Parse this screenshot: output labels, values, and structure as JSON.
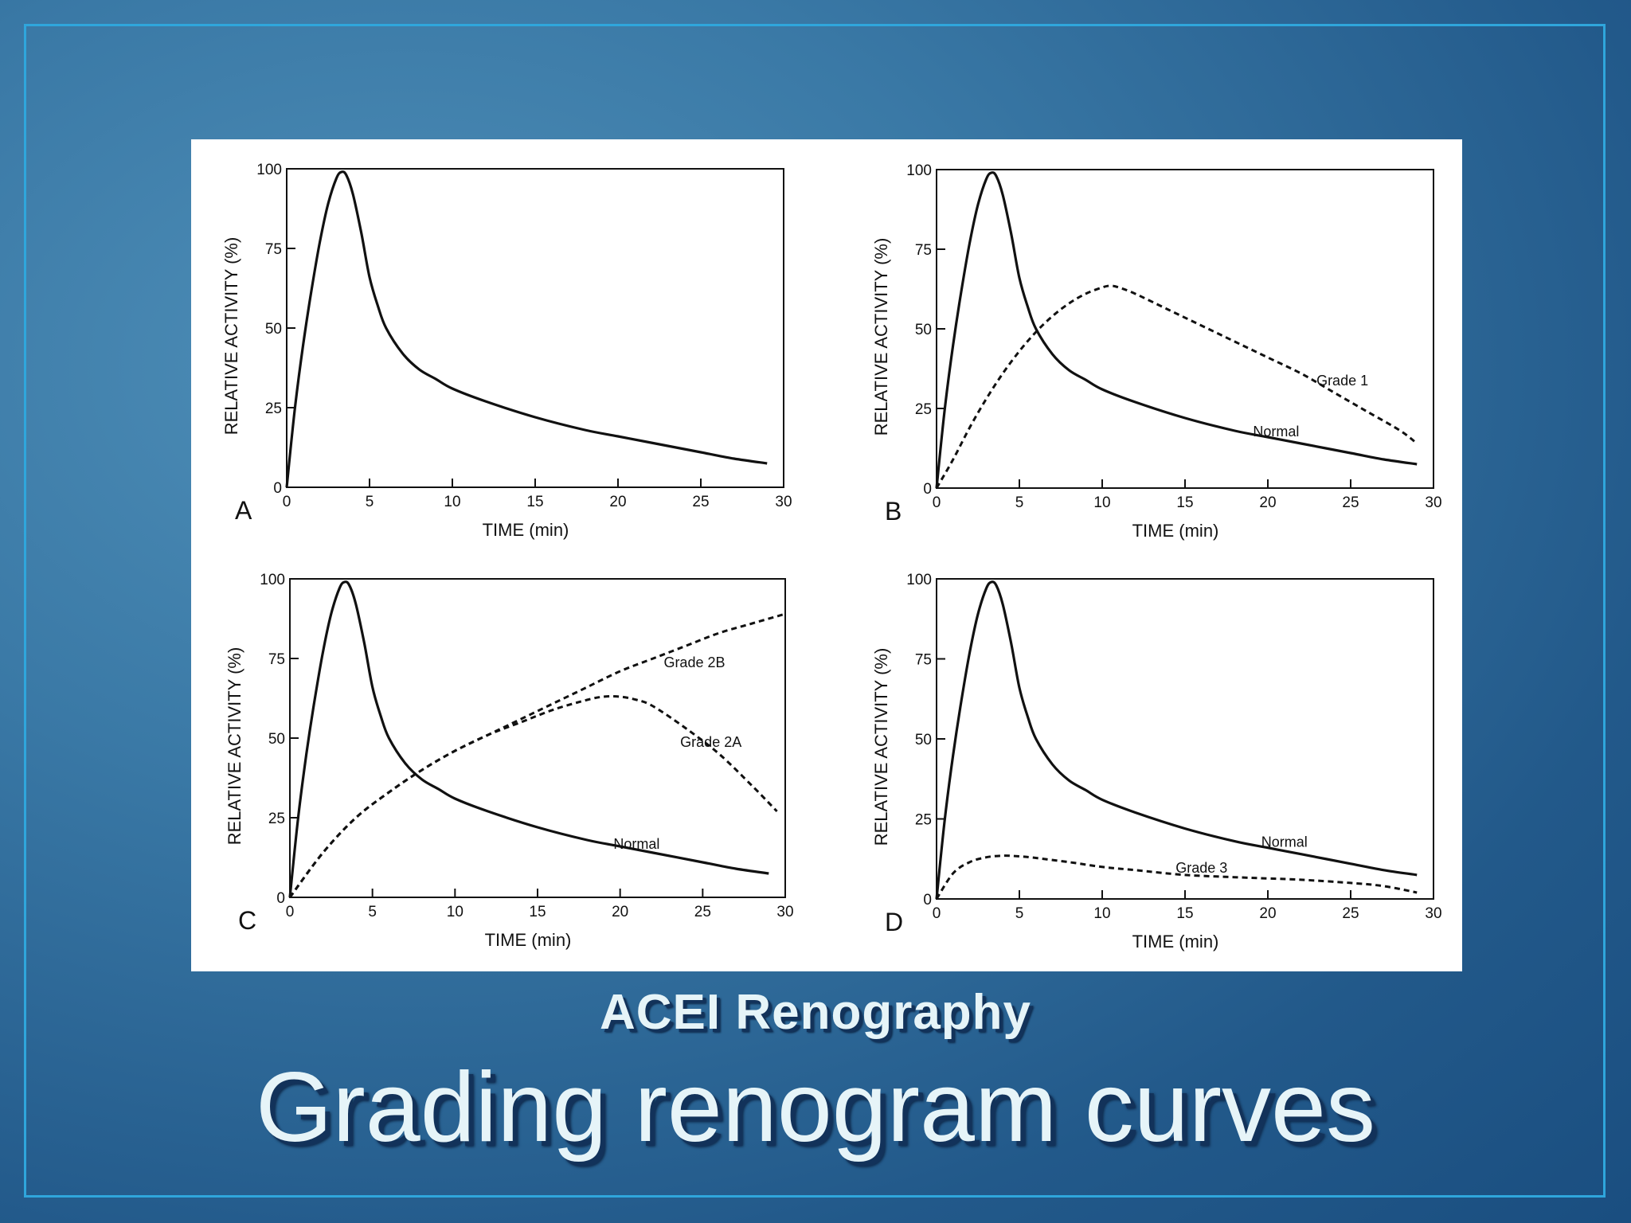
{
  "slide": {
    "subtitle": "ACEI Renography",
    "title": "Grading renogram curves",
    "frame_color": "#2fa6dc",
    "text_color": "#e6f4f8"
  },
  "chart_data": [
    {
      "type": "line",
      "panel": "A",
      "xlabel": "TIME (min)",
      "ylabel": "RELATIVE ACTIVITY (%)",
      "xlim": [
        0,
        30
      ],
      "ylim": [
        0,
        100
      ],
      "xticks": [
        0,
        5,
        10,
        15,
        20,
        25,
        30
      ],
      "yticks": [
        0,
        25,
        50,
        75,
        100
      ],
      "series": [
        {
          "style": "solid",
          "x": [
            0,
            0.5,
            1,
            1.5,
            2,
            2.5,
            3,
            3.3,
            3.6,
            4,
            4.5,
            5,
            5.5,
            6,
            7,
            8,
            9,
            10,
            12,
            15,
            18,
            20,
            22,
            25,
            27,
            29
          ],
          "y": [
            0,
            25,
            45,
            62,
            77,
            89,
            97,
            99,
            98,
            92,
            80,
            66,
            57,
            50,
            42,
            37,
            34,
            31,
            27,
            22,
            18,
            16,
            14,
            11,
            9,
            7.5
          ]
        }
      ],
      "labels": []
    },
    {
      "type": "line",
      "panel": "B",
      "xlabel": "TIME (min)",
      "ylabel": "RELATIVE ACTIVITY (%)",
      "xlim": [
        0,
        30
      ],
      "ylim": [
        0,
        100
      ],
      "xticks": [
        0,
        5,
        10,
        15,
        20,
        25,
        30
      ],
      "yticks": [
        0,
        25,
        50,
        75,
        100
      ],
      "series": [
        {
          "name": "Normal",
          "style": "solid",
          "x": [
            0,
            0.5,
            1,
            1.5,
            2,
            2.5,
            3,
            3.3,
            3.6,
            4,
            4.5,
            5,
            5.5,
            6,
            7,
            8,
            9,
            10,
            12,
            15,
            18,
            20,
            22,
            25,
            27,
            29
          ],
          "y": [
            0,
            25,
            45,
            62,
            77,
            89,
            97,
            99,
            98,
            92,
            80,
            66,
            57,
            50,
            42,
            37,
            34,
            31,
            27,
            22,
            18,
            16,
            14,
            11,
            9,
            7.5
          ]
        },
        {
          "name": "Grade 1",
          "style": "dashed",
          "x": [
            0,
            1,
            2,
            3,
            4,
            5,
            6,
            7,
            8,
            9,
            10,
            10.5,
            11,
            12,
            14,
            16,
            18,
            20,
            22,
            24,
            26,
            28,
            29
          ],
          "y": [
            0,
            9,
            19,
            28,
            36,
            43,
            49,
            54,
            58,
            61,
            63,
            63.5,
            63,
            61,
            56,
            51,
            46,
            41,
            36,
            30,
            24,
            18,
            14
          ]
        }
      ],
      "labels": [
        {
          "text": "Grade 1",
          "x": 24.5,
          "y": 34
        },
        {
          "text": "Normal",
          "x": 20.5,
          "y": 18
        }
      ]
    },
    {
      "type": "line",
      "panel": "C",
      "xlabel": "TIME (min)",
      "ylabel": "RELATIVE ACTIVITY (%)",
      "xlim": [
        0,
        30
      ],
      "ylim": [
        0,
        100
      ],
      "xticks": [
        0,
        5,
        10,
        15,
        20,
        25,
        30
      ],
      "yticks": [
        0,
        25,
        50,
        75,
        100
      ],
      "series": [
        {
          "name": "Normal",
          "style": "solid",
          "x": [
            0,
            0.5,
            1,
            1.5,
            2,
            2.5,
            3,
            3.3,
            3.6,
            4,
            4.5,
            5,
            5.5,
            6,
            7,
            8,
            9,
            10,
            12,
            15,
            18,
            20,
            22,
            25,
            27,
            29
          ],
          "y": [
            0,
            25,
            45,
            62,
            77,
            89,
            97,
            99,
            98,
            92,
            80,
            66,
            57,
            50,
            42,
            37,
            34,
            31,
            27,
            22,
            18,
            16,
            14,
            11,
            9,
            7.5
          ]
        },
        {
          "name": "Grade 2B",
          "style": "dashed",
          "x": [
            0,
            2,
            4,
            6,
            8,
            10,
            12,
            14,
            16,
            18,
            20,
            22,
            24,
            26,
            28,
            30
          ],
          "y": [
            0,
            14,
            25,
            33,
            40,
            46,
            51,
            56,
            61,
            66,
            71,
            75,
            79,
            83,
            86,
            89
          ]
        },
        {
          "name": "Grade 2A",
          "style": "dashed",
          "x": [
            0,
            2,
            4,
            6,
            8,
            10,
            12,
            14,
            16,
            18,
            19,
            20,
            21,
            22,
            24,
            26,
            28,
            29.5
          ],
          "y": [
            0,
            14,
            25,
            33,
            40,
            46,
            51,
            55,
            59,
            62,
            63,
            63,
            62,
            60,
            53,
            45,
            35,
            27
          ]
        }
      ],
      "labels": [
        {
          "text": "Grade 2B",
          "x": 24.5,
          "y": 74
        },
        {
          "text": "Grade 2A",
          "x": 25.5,
          "y": 49
        },
        {
          "text": "Normal",
          "x": 21,
          "y": 17
        }
      ]
    },
    {
      "type": "line",
      "panel": "D",
      "xlabel": "TIME (min)",
      "ylabel": "RELATIVE ACTIVITY (%)",
      "xlim": [
        0,
        30
      ],
      "ylim": [
        0,
        100
      ],
      "xticks": [
        0,
        5,
        10,
        15,
        20,
        25,
        30
      ],
      "yticks": [
        0,
        25,
        50,
        75,
        100
      ],
      "series": [
        {
          "name": "Normal",
          "style": "solid",
          "x": [
            0,
            0.5,
            1,
            1.5,
            2,
            2.5,
            3,
            3.3,
            3.6,
            4,
            4.5,
            5,
            5.5,
            6,
            7,
            8,
            9,
            10,
            12,
            15,
            18,
            20,
            22,
            25,
            27,
            29
          ],
          "y": [
            0,
            25,
            45,
            62,
            77,
            89,
            97,
            99,
            98,
            92,
            80,
            66,
            57,
            50,
            42,
            37,
            34,
            31,
            27,
            22,
            18,
            16,
            14,
            11,
            9,
            7.5
          ]
        },
        {
          "name": "Grade 3",
          "style": "dashed",
          "x": [
            0,
            1,
            2,
            3,
            4,
            5,
            6,
            8,
            10,
            12,
            15,
            18,
            20,
            22,
            25,
            27,
            29
          ],
          "y": [
            0,
            8,
            11.5,
            13,
            13.5,
            13.3,
            12.8,
            11.5,
            10,
            9,
            7.5,
            6.8,
            6.4,
            6,
            5,
            4,
            2
          ]
        }
      ],
      "labels": [
        {
          "text": "Normal",
          "x": 21,
          "y": 18
        },
        {
          "text": "Grade 3",
          "x": 16,
          "y": 10
        }
      ]
    }
  ]
}
